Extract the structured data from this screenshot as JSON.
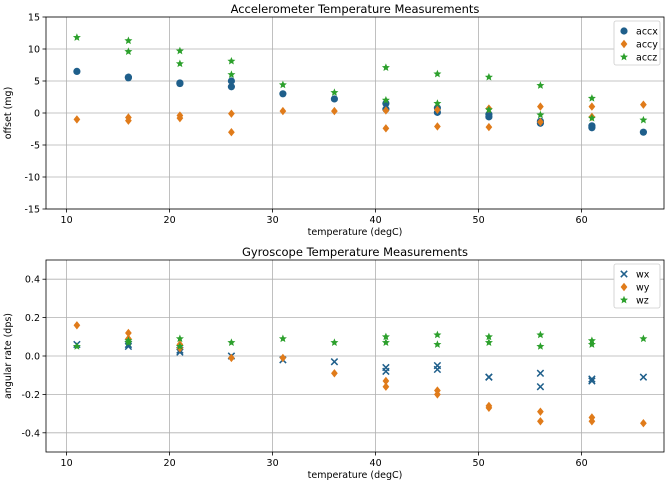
{
  "chart_data": [
    {
      "type": "scatter",
      "title": "Accelerometer Temperature Measurements",
      "xlabel": "temperature (degC)",
      "ylabel": "offset (mg)",
      "xlim": [
        8,
        68
      ],
      "ylim": [
        -15,
        15
      ],
      "xticks": [
        10,
        20,
        30,
        40,
        50,
        60
      ],
      "yticks": [
        -15,
        -10,
        -5,
        0,
        5,
        10,
        15
      ],
      "grid": true,
      "legend_position": "top-right",
      "series": [
        {
          "name": "accx",
          "color": "#1f5f8b",
          "marker": "circle",
          "points": [
            [
              11,
              6.5
            ],
            [
              16,
              5.5
            ],
            [
              16,
              5.6
            ],
            [
              21,
              4.7
            ],
            [
              21,
              4.6
            ],
            [
              26,
              5.0
            ],
            [
              26,
              4.1
            ],
            [
              31,
              3.0
            ],
            [
              36,
              2.2
            ],
            [
              41,
              1.5
            ],
            [
              41,
              0.6
            ],
            [
              46,
              0.8
            ],
            [
              46,
              0.1
            ],
            [
              51,
              -0.2
            ],
            [
              51,
              -0.6
            ],
            [
              56,
              -1.3
            ],
            [
              56,
              -1.6
            ],
            [
              61,
              -2.0
            ],
            [
              61,
              -2.3
            ],
            [
              66,
              -3.0
            ]
          ]
        },
        {
          "name": "accy",
          "color": "#e07b1a",
          "marker": "diamond",
          "points": [
            [
              11,
              -1.0
            ],
            [
              16,
              -0.7
            ],
            [
              16,
              -1.2
            ],
            [
              21,
              -0.4
            ],
            [
              21,
              -0.8
            ],
            [
              26,
              -0.1
            ],
            [
              26,
              -3.0
            ],
            [
              31,
              0.3
            ],
            [
              36,
              0.3
            ],
            [
              41,
              0.4
            ],
            [
              41,
              -2.4
            ],
            [
              46,
              0.5
            ],
            [
              46,
              -2.1
            ],
            [
              51,
              0.7
            ],
            [
              51,
              -2.2
            ],
            [
              56,
              1.0
            ],
            [
              56,
              -1.4
            ],
            [
              61,
              1.0
            ],
            [
              61,
              -0.6
            ],
            [
              66,
              1.3
            ]
          ]
        },
        {
          "name": "accz",
          "color": "#2ca02c",
          "marker": "star",
          "points": [
            [
              11,
              11.8
            ],
            [
              16,
              11.3
            ],
            [
              16,
              9.6
            ],
            [
              21,
              9.7
            ],
            [
              21,
              7.7
            ],
            [
              26,
              8.1
            ],
            [
              26,
              6.0
            ],
            [
              31,
              4.4
            ],
            [
              36,
              3.2
            ],
            [
              41,
              7.1
            ],
            [
              41,
              2.0
            ],
            [
              46,
              6.1
            ],
            [
              46,
              1.5
            ],
            [
              51,
              5.6
            ],
            [
              51,
              0.5
            ],
            [
              56,
              4.3
            ],
            [
              56,
              -0.3
            ],
            [
              61,
              2.3
            ],
            [
              61,
              -0.8
            ],
            [
              66,
              -1.1
            ]
          ]
        }
      ]
    },
    {
      "type": "scatter",
      "title": "Gyroscope Temperature Measurements",
      "xlabel": "temperature (degC)",
      "ylabel": "angular rate (dps)",
      "xlim": [
        8,
        68
      ],
      "ylim": [
        -0.5,
        0.5
      ],
      "xticks": [
        10,
        20,
        30,
        40,
        50,
        60
      ],
      "yticks": [
        -0.4,
        -0.2,
        0.0,
        0.2,
        0.4
      ],
      "grid": true,
      "legend_position": "top-right",
      "series": [
        {
          "name": "wx",
          "color": "#1f5f8b",
          "marker": "x",
          "points": [
            [
              11,
              0.06
            ],
            [
              16,
              0.06
            ],
            [
              16,
              0.05
            ],
            [
              21,
              0.03
            ],
            [
              21,
              0.02
            ],
            [
              26,
              0.0
            ],
            [
              31,
              -0.02
            ],
            [
              36,
              -0.03
            ],
            [
              41,
              -0.06
            ],
            [
              41,
              -0.08
            ],
            [
              46,
              -0.05
            ],
            [
              46,
              -0.07
            ],
            [
              51,
              -0.11
            ],
            [
              51,
              -0.11
            ],
            [
              56,
              -0.09
            ],
            [
              56,
              -0.16
            ],
            [
              61,
              -0.12
            ],
            [
              61,
              -0.13
            ],
            [
              66,
              -0.11
            ]
          ]
        },
        {
          "name": "wy",
          "color": "#e07b1a",
          "marker": "diamond",
          "points": [
            [
              11,
              0.16
            ],
            [
              16,
              0.12
            ],
            [
              16,
              0.09
            ],
            [
              21,
              0.06
            ],
            [
              21,
              0.04
            ],
            [
              26,
              -0.01
            ],
            [
              31,
              -0.01
            ],
            [
              36,
              -0.09
            ],
            [
              41,
              -0.13
            ],
            [
              41,
              -0.16
            ],
            [
              46,
              -0.18
            ],
            [
              46,
              -0.2
            ],
            [
              51,
              -0.26
            ],
            [
              51,
              -0.27
            ],
            [
              56,
              -0.29
            ],
            [
              56,
              -0.34
            ],
            [
              61,
              -0.32
            ],
            [
              61,
              -0.34
            ],
            [
              66,
              -0.35
            ]
          ]
        },
        {
          "name": "wz",
          "color": "#2ca02c",
          "marker": "star",
          "points": [
            [
              11,
              0.05
            ],
            [
              16,
              0.08
            ],
            [
              16,
              0.07
            ],
            [
              21,
              0.09
            ],
            [
              21,
              0.05
            ],
            [
              26,
              0.07
            ],
            [
              31,
              0.09
            ],
            [
              36,
              0.07
            ],
            [
              41,
              0.1
            ],
            [
              41,
              0.07
            ],
            [
              46,
              0.11
            ],
            [
              46,
              0.06
            ],
            [
              51,
              0.1
            ],
            [
              51,
              0.07
            ],
            [
              56,
              0.11
            ],
            [
              56,
              0.05
            ],
            [
              61,
              0.08
            ],
            [
              61,
              0.06
            ],
            [
              66,
              0.09
            ]
          ]
        }
      ]
    }
  ]
}
